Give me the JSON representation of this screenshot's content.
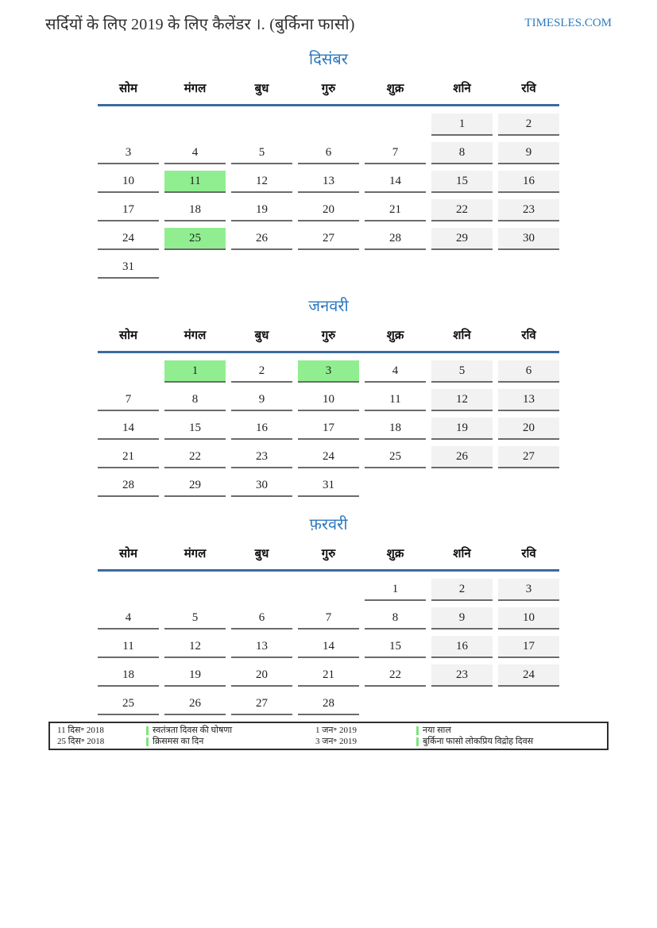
{
  "page": {
    "title": "सर्दियों के लिए 2019 के लिए कैलेंडर ।. (बुर्किना फासो)",
    "site": "TIMESLES.COM"
  },
  "colors": {
    "accent_blue": "#2e79c0",
    "header_line_blue": "#3d6a9e",
    "weekend_bg": "#f2f2f2",
    "holiday_green": "#90ee90",
    "legend_marker_green": "#7ce57c",
    "cell_border_gray": "#6b6b6b"
  },
  "weekdays": [
    "सोम",
    "मंगल",
    "बुध",
    "गुरु",
    "शुक्र",
    "शनि",
    "रवि"
  ],
  "months": [
    {
      "name": "दिसंबर",
      "holidays": [
        11,
        25
      ],
      "weeks": [
        [
          null,
          null,
          null,
          null,
          null,
          1,
          2
        ],
        [
          3,
          4,
          5,
          6,
          7,
          8,
          9
        ],
        [
          10,
          11,
          12,
          13,
          14,
          15,
          16
        ],
        [
          17,
          18,
          19,
          20,
          21,
          22,
          23
        ],
        [
          24,
          25,
          26,
          27,
          28,
          29,
          30
        ],
        [
          31,
          null,
          null,
          null,
          null,
          null,
          null
        ]
      ]
    },
    {
      "name": "जनवरी",
      "holidays": [
        1,
        3
      ],
      "weeks": [
        [
          null,
          1,
          2,
          3,
          4,
          5,
          6
        ],
        [
          7,
          8,
          9,
          10,
          11,
          12,
          13
        ],
        [
          14,
          15,
          16,
          17,
          18,
          19,
          20
        ],
        [
          21,
          22,
          23,
          24,
          25,
          26,
          27
        ],
        [
          28,
          29,
          30,
          31,
          null,
          null,
          null
        ]
      ]
    },
    {
      "name": "फ़रवरी",
      "holidays": [],
      "weeks": [
        [
          null,
          null,
          null,
          null,
          1,
          2,
          3
        ],
        [
          4,
          5,
          6,
          7,
          8,
          9,
          10
        ],
        [
          11,
          12,
          13,
          14,
          15,
          16,
          17
        ],
        [
          18,
          19,
          20,
          21,
          22,
          23,
          24
        ],
        [
          25,
          26,
          27,
          28,
          null,
          null,
          null
        ]
      ]
    }
  ],
  "legend": {
    "entries": [
      {
        "date": "11 दिस॰ 2018",
        "label": "स्वतंत्रता दिवस की घोषणा"
      },
      {
        "date": "25 दिस॰ 2018",
        "label": "क्रिसमस का दिन"
      },
      {
        "date": "1 जन॰ 2019",
        "label": "नया साल"
      },
      {
        "date": "3 जन॰ 2019",
        "label": "बुर्किना फासो लोकप्रिय विद्रोह दिवस"
      }
    ]
  }
}
